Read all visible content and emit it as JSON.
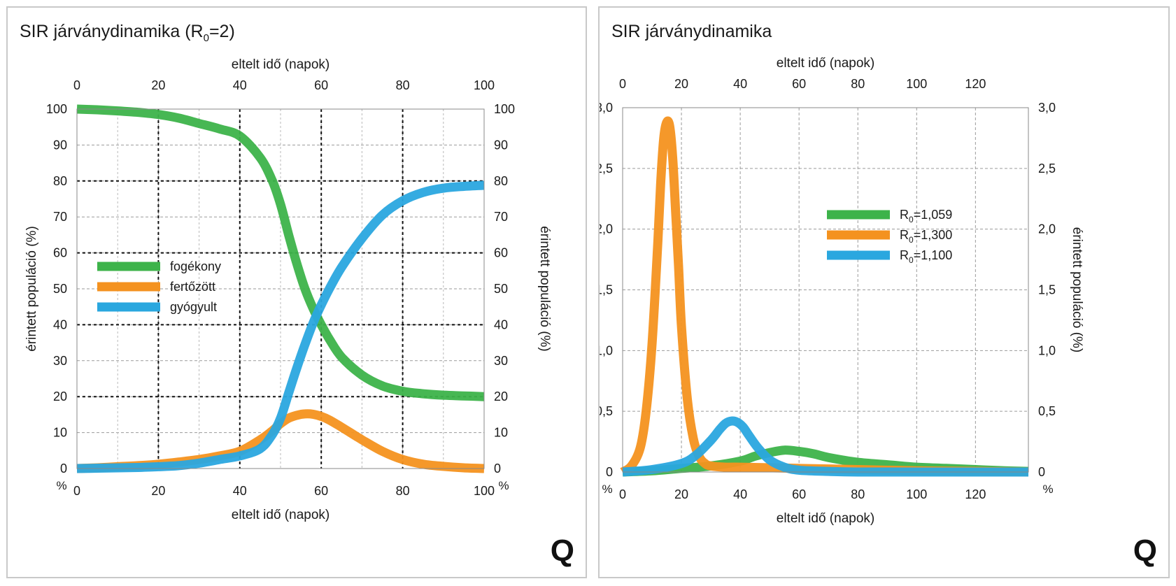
{
  "left": {
    "title_main": "SIR járványdinamika (R",
    "title_sub": "0",
    "title_tail": "=2)",
    "logo": "Q"
  },
  "right": {
    "title": "SIR járványdinamika",
    "logo": "Q"
  },
  "chart_data": [
    {
      "type": "line",
      "title": "SIR járványdinamika (R0=2)",
      "xlabel": "eltelt idő (napok)",
      "ylabel": "érintett populáció (%)",
      "yunit": "%",
      "xlim": [
        0,
        100
      ],
      "ylim": [
        0,
        100
      ],
      "xticks": [
        0,
        20,
        40,
        60,
        80,
        100
      ],
      "yticks": [
        0,
        10,
        20,
        30,
        40,
        50,
        60,
        70,
        80,
        90,
        100
      ],
      "grid": true,
      "legend_position": "center-left",
      "x": [
        0,
        5,
        10,
        15,
        20,
        25,
        30,
        35,
        40,
        45,
        48,
        50,
        52,
        54,
        56,
        58,
        60,
        62,
        65,
        70,
        75,
        80,
        85,
        90,
        95,
        100
      ],
      "series": [
        {
          "name": "fogékony",
          "color": "#3db34a",
          "values": [
            100,
            99.8,
            99.5,
            99.1,
            98.5,
            97.5,
            96.0,
            94.5,
            92.5,
            86.5,
            80.0,
            73.5,
            65.0,
            57.0,
            50.0,
            44.5,
            40.0,
            36.0,
            31.0,
            26.0,
            23.0,
            21.5,
            20.8,
            20.4,
            20.2,
            20.0
          ]
        },
        {
          "name": "fertőzött",
          "color": "#f4921f",
          "values": [
            0,
            0.2,
            0.5,
            0.8,
            1.2,
            1.8,
            2.5,
            3.5,
            4.8,
            8.0,
            10.5,
            12.5,
            14.0,
            14.8,
            15.2,
            15.1,
            14.5,
            13.5,
            11.5,
            8.0,
            4.8,
            2.5,
            1.2,
            0.6,
            0.2,
            0
          ]
        },
        {
          "name": "gyógyult",
          "color": "#2aa7df",
          "values": [
            0,
            0.1,
            0.2,
            0.3,
            0.5,
            0.8,
            1.5,
            2.5,
            3.5,
            5.5,
            9.5,
            14.0,
            21.0,
            28.0,
            34.5,
            40.5,
            45.5,
            50.0,
            56.0,
            64.0,
            70.5,
            74.5,
            76.8,
            78.0,
            78.5,
            78.8
          ]
        }
      ]
    },
    {
      "type": "line",
      "title": "SIR járványdinamika",
      "xlabel": "eltelt idő (napok)",
      "ylabel": "érintett populáció (%)",
      "yunit": "%",
      "xlim": [
        0,
        138
      ],
      "ylim": [
        0,
        3.0
      ],
      "xticks": [
        0,
        20,
        40,
        60,
        80,
        100,
        120
      ],
      "yticks": [
        0,
        0.5,
        1.0,
        1.5,
        2.0,
        2.5,
        3.0
      ],
      "ytick_labels": [
        "0",
        "0,5",
        "1,0",
        "1,5",
        "2,0",
        "2,5",
        "3,0"
      ],
      "grid": true,
      "legend_position": "top-right",
      "series": [
        {
          "name": "R0=1,059",
          "label_main": "R",
          "label_sub": "0",
          "label_tail": "=1,059",
          "color": "#3db34a",
          "x": [
            0,
            10,
            20,
            30,
            40,
            45,
            50,
            55,
            60,
            65,
            70,
            80,
            90,
            100,
            110,
            120,
            130,
            138
          ],
          "values": [
            0,
            0.01,
            0.03,
            0.05,
            0.09,
            0.13,
            0.16,
            0.18,
            0.17,
            0.15,
            0.12,
            0.08,
            0.06,
            0.04,
            0.03,
            0.02,
            0.01,
            0.005
          ]
        },
        {
          "name": "R0=1,300",
          "label_main": "R",
          "label_sub": "0",
          "label_tail": "=1,300",
          "color": "#f4921f",
          "x": [
            0,
            3,
            6,
            8,
            10,
            12,
            13,
            14,
            15,
            16,
            17,
            18,
            19,
            20,
            22,
            24,
            26,
            28,
            30,
            35,
            40,
            60,
            80,
            100,
            120,
            138
          ],
          "values": [
            0,
            0.05,
            0.2,
            0.5,
            1.05,
            1.9,
            2.4,
            2.75,
            2.88,
            2.85,
            2.6,
            2.15,
            1.7,
            1.2,
            0.6,
            0.28,
            0.13,
            0.07,
            0.05,
            0.04,
            0.04,
            0.03,
            0.02,
            0.01,
            0.005,
            0
          ]
        },
        {
          "name": "R0=1,100",
          "label_main": "R",
          "label_sub": "0",
          "label_tail": "=1,100",
          "color": "#2aa7df",
          "x": [
            0,
            10,
            20,
            25,
            30,
            33,
            35,
            37,
            39,
            41,
            43,
            46,
            50,
            55,
            60,
            70,
            80,
            100,
            138
          ],
          "values": [
            0,
            0.02,
            0.07,
            0.14,
            0.26,
            0.35,
            0.4,
            0.42,
            0.41,
            0.37,
            0.3,
            0.2,
            0.1,
            0.04,
            0.015,
            0.005,
            0,
            0,
            0
          ]
        }
      ]
    }
  ]
}
